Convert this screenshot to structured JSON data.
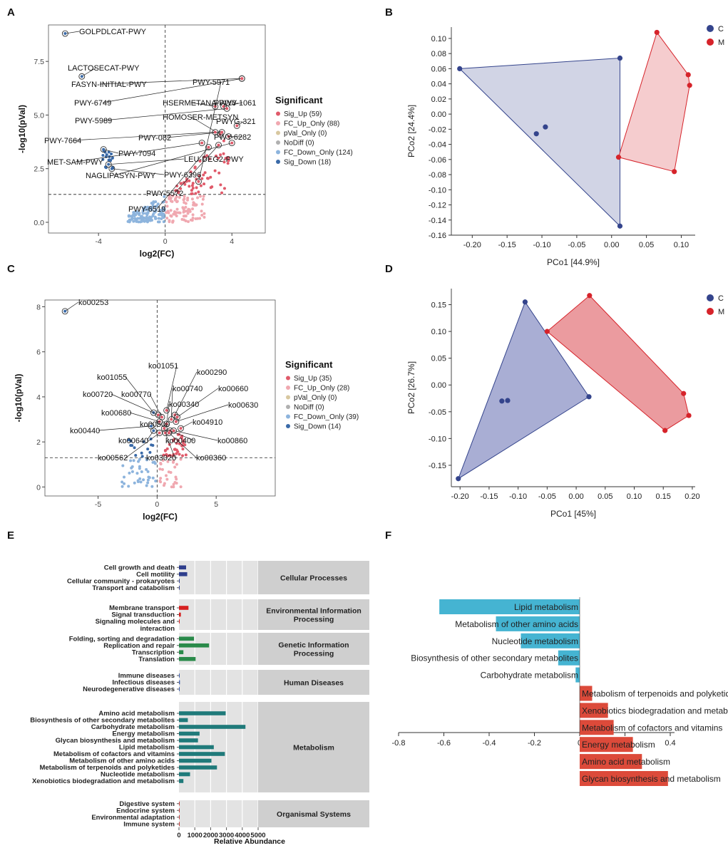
{
  "chart_data": [
    {
      "panel": "A",
      "type": "scatter",
      "subtype": "volcano",
      "xlabel": "log2(FC)",
      "ylabel": "-log10(pVal)",
      "xlim": [
        -7,
        6
      ],
      "ylim": [
        -0.5,
        9.2
      ],
      "xticks": [
        -4,
        0,
        4
      ],
      "yticks": [
        0.0,
        2.5,
        5.0,
        7.5
      ],
      "threshold_y": 1.3,
      "threshold_x": 0,
      "legend": {
        "title": "Significant",
        "entries": [
          {
            "label": "Sig_Up (59)",
            "color": "#e05a6a"
          },
          {
            "label": "FC_Up_Only (88)",
            "color": "#f0a8b0"
          },
          {
            "label": "pVal_Only (0)",
            "color": "#d8c8a0"
          },
          {
            "label": "NoDiff (0)",
            "color": "#b0b0b0"
          },
          {
            "label": "FC_Down_Only (124)",
            "color": "#8db4dd"
          },
          {
            "label": "Sig_Down (18)",
            "color": "#3a6aa8"
          }
        ]
      },
      "labeled_points": [
        {
          "label": "GOLPDLCAT-PWY",
          "x": -6.0,
          "y": 8.8
        },
        {
          "label": "LACTOSECAT-PWY",
          "x": -5.0,
          "y": 6.8
        },
        {
          "label": "FASYN-INITIAL-PWY",
          "x": 4.6,
          "y": 6.7
        },
        {
          "label": "PWY-6749",
          "x": 4.6,
          "y": 6.7
        },
        {
          "label": "HSERMETANA-PWY",
          "x": 3.0,
          "y": 5.4
        },
        {
          "label": "PWY0-1061",
          "x": 3.5,
          "y": 5.4
        },
        {
          "label": "PWY-5989",
          "x": 3.7,
          "y": 5.3
        },
        {
          "label": "HOMOSER-METSYN",
          "x": 3.3,
          "y": 4.1
        },
        {
          "label": "PWY-082",
          "x": 3.4,
          "y": 4.2
        },
        {
          "label": "PWYG-321",
          "x": 4.3,
          "y": 4.5
        },
        {
          "label": "PWY-7664",
          "x": 3.0,
          "y": 4.2
        },
        {
          "label": "PWY-6282",
          "x": 3.8,
          "y": 4.0
        },
        {
          "label": "PWY-7094",
          "x": -3.7,
          "y": 3.4
        },
        {
          "label": "MET-SAM-PWY",
          "x": 2.2,
          "y": 3.7
        },
        {
          "label": "LEU-DEG2-PWY",
          "x": -3.4,
          "y": 2.7
        },
        {
          "label": "NAGLIPASYN-PWY",
          "x": 4.0,
          "y": 3.7
        },
        {
          "label": "PWY-6396",
          "x": -3.2,
          "y": 2.5
        },
        {
          "label": "PWY-5572",
          "x": 3.2,
          "y": 3.6
        },
        {
          "label": "PWY-6519",
          "x": 2.6,
          "y": 3.5
        },
        {
          "label": "PWY-5971",
          "x": 2.0,
          "y": 1.9
        }
      ]
    },
    {
      "panel": "B",
      "type": "scatter",
      "subtype": "pcoa",
      "xlabel": "PCo1 [44.9%]",
      "ylabel": "PCo2 [24.4%]",
      "xlim": [
        -0.23,
        0.12
      ],
      "ylim": [
        -0.16,
        0.115
      ],
      "xticks": [
        -0.2,
        -0.15,
        -0.1,
        -0.05,
        0.0,
        0.05,
        0.1
      ],
      "yticks": [
        -0.16,
        -0.14,
        -0.12,
        -0.1,
        -0.08,
        -0.06,
        -0.04,
        -0.02,
        0.0,
        0.02,
        0.04,
        0.06,
        0.08,
        0.1
      ],
      "legend": [
        "C",
        "M"
      ],
      "series": [
        {
          "name": "C",
          "color": "#34448c",
          "x": [
            -0.218,
            0.012,
            0.012,
            -0.108,
            -0.095
          ],
          "y": [
            0.06,
            0.074,
            -0.148,
            -0.026,
            -0.017
          ],
          "hull": [
            0,
            1,
            2
          ]
        },
        {
          "name": "M",
          "color": "#d6232a",
          "x": [
            0.065,
            0.11,
            0.112,
            0.09,
            0.01
          ],
          "y": [
            0.108,
            0.052,
            0.038,
            -0.076,
            -0.057
          ],
          "hull": [
            0,
            1,
            2,
            3,
            4
          ]
        }
      ]
    },
    {
      "panel": "C",
      "type": "scatter",
      "subtype": "volcano",
      "xlabel": "log2(FC)",
      "ylabel": "-log10(pVal)",
      "xlim": [
        -9.5,
        10
      ],
      "ylim": [
        -0.4,
        8.3
      ],
      "xticks": [
        -5,
        0,
        5
      ],
      "yticks": [
        0,
        2,
        4,
        6,
        8
      ],
      "threshold_y": 1.3,
      "threshold_x": 0,
      "legend": {
        "title": "Significant",
        "entries": [
          {
            "label": "Sig_Up (35)",
            "color": "#e05a6a"
          },
          {
            "label": "FC_Up_Only (28)",
            "color": "#f0a8b0"
          },
          {
            "label": "pVal_Only (0)",
            "color": "#d8c8a0"
          },
          {
            "label": "NoDiff (0)",
            "color": "#b0b0b0"
          },
          {
            "label": "FC_Down_Only (39)",
            "color": "#8db4dd"
          },
          {
            "label": "Sig_Down (14)",
            "color": "#3a6aa8"
          }
        ]
      },
      "labeled_points": [
        {
          "label": "ko00253",
          "x": -7.8,
          "y": 7.8
        },
        {
          "label": "ko01051",
          "x": 0.8,
          "y": 3.4
        },
        {
          "label": "ko00290",
          "x": 1.5,
          "y": 3.2
        },
        {
          "label": "ko01055",
          "x": -0.3,
          "y": 3.3
        },
        {
          "label": "ko00740",
          "x": 1.2,
          "y": 3.0
        },
        {
          "label": "ko00660",
          "x": 1.7,
          "y": 3.1
        },
        {
          "label": "ko00720",
          "x": 0.1,
          "y": 3.2
        },
        {
          "label": "ko00770",
          "x": 0.4,
          "y": 3.1
        },
        {
          "label": "ko00340",
          "x": 0.8,
          "y": 2.8
        },
        {
          "label": "ko00630",
          "x": 1.6,
          "y": 2.9
        },
        {
          "label": "ko00680",
          "x": 0.2,
          "y": 2.9
        },
        {
          "label": "ko00500",
          "x": 0.6,
          "y": 2.6
        },
        {
          "label": "ko04910",
          "x": 2.0,
          "y": 2.6
        },
        {
          "label": "ko00440",
          "x": -0.5,
          "y": 2.7
        },
        {
          "label": "ko00640",
          "x": -0.3,
          "y": 2.5
        },
        {
          "label": "ko00400",
          "x": 1.1,
          "y": 2.5
        },
        {
          "label": "ko00860",
          "x": 1.4,
          "y": 2.5
        },
        {
          "label": "ko00562",
          "x": 0.2,
          "y": 2.4
        },
        {
          "label": "ko03020",
          "x": 0.7,
          "y": 2.4
        },
        {
          "label": "ko00360",
          "x": 1.0,
          "y": 2.4
        }
      ]
    },
    {
      "panel": "D",
      "type": "scatter",
      "subtype": "pcoa",
      "xlabel": "PCo1 [45%]",
      "ylabel": "PCo2 [26.7%]",
      "xlim": [
        -0.215,
        0.205
      ],
      "ylim": [
        -0.19,
        0.18
      ],
      "xticks": [
        -0.2,
        -0.15,
        -0.1,
        -0.05,
        0.0,
        0.05,
        0.1,
        0.15,
        0.2
      ],
      "yticks": [
        -0.15,
        -0.1,
        -0.05,
        0.0,
        0.05,
        0.1,
        0.15
      ],
      "legend": [
        "C",
        "M"
      ],
      "series": [
        {
          "name": "C",
          "color": "#34448c",
          "x": [
            -0.088,
            0.022,
            -0.203,
            -0.128,
            -0.118
          ],
          "y": [
            0.155,
            -0.022,
            -0.175,
            -0.03,
            -0.029
          ],
          "hull": [
            0,
            1,
            2
          ]
        },
        {
          "name": "M",
          "color": "#d6232a",
          "x": [
            0.023,
            0.185,
            0.194,
            0.153,
            -0.05
          ],
          "y": [
            0.167,
            -0.016,
            -0.057,
            -0.085,
            0.1
          ],
          "hull": [
            0,
            1,
            2,
            3,
            4
          ]
        }
      ]
    },
    {
      "panel": "E",
      "type": "bar",
      "orientation": "horizontal",
      "xlabel": "Relative Abundance",
      "xlim": [
        0,
        5000
      ],
      "xticks": [
        0,
        1000,
        2000,
        3000,
        4000,
        5000
      ],
      "groups": [
        {
          "name": "Cellular Processes",
          "color": "#2e3e8c",
          "categories": [
            "Cell growth and death",
            "Cell motility",
            "Cellular community - prokaryotes",
            "Transport and catabolism"
          ],
          "values": [
            450,
            520,
            40,
            30
          ]
        },
        {
          "name": "Environmental Information Processing",
          "color": "#d62020",
          "categories": [
            "Membrane transport",
            "Signal transduction",
            "Signaling molecules and interaction"
          ],
          "values": [
            600,
            120,
            10
          ]
        },
        {
          "name": "Genetic Information Processing",
          "color": "#2a8a4a",
          "categories": [
            "Folding, sorting and degradation",
            "Replication and repair",
            "Transcription",
            "Translation"
          ],
          "values": [
            950,
            1900,
            280,
            1050
          ]
        },
        {
          "name": "Human Diseases",
          "color": "#3a5aaa",
          "categories": [
            "Immune diseases",
            "Infectious diseases",
            "Neurodegenerative diseases"
          ],
          "values": [
            10,
            60,
            10
          ]
        },
        {
          "name": "Metabolism",
          "color": "#1f7a7a",
          "categories": [
            "Amino acid metabolism",
            "Biosynthesis of other secondary metabolites",
            "Carbohydrate metabolism",
            "Energy metabolism",
            "Glycan biosynthesis and metabolism",
            "Lipid metabolism",
            "Metabolism of cofactors and vitamins",
            "Metabolism of other amino acids",
            "Metabolism of terpenoids and polyketides",
            "Nucleotide metabolism",
            "Xenobiotics biodegradation and metabolism"
          ],
          "values": [
            2950,
            560,
            4200,
            1300,
            1200,
            2200,
            2900,
            2050,
            2400,
            700,
            280
          ]
        },
        {
          "name": "Organismal Systems",
          "color": "#c03a3a",
          "categories": [
            "Digestive system",
            "Endocrine system",
            "Environmental adaptation",
            "Immune system"
          ],
          "values": [
            5,
            10,
            40,
            5
          ]
        }
      ]
    },
    {
      "panel": "F",
      "type": "bar",
      "orientation": "horizontal",
      "xlim": [
        -0.8,
        0.45
      ],
      "xticks": [
        -0.8,
        -0.6,
        -0.4,
        -0.2,
        0,
        0.2,
        0.4
      ],
      "xtick_labels": [
        "-0.8",
        "-0.6",
        "-0.4",
        "-0.2",
        "0",
        "0.2",
        "0.4"
      ],
      "categories": [
        "Lipid metabolism",
        "Metabolism of other amino acids",
        "Nucleotide metabolism",
        "Biosynthesis of other secondary metabolites",
        "Carbohydrate metabolism",
        "Metabolism of terpenoids and polyketides",
        "Xenobiotics biodegradation and metabolism",
        "Metabolism of cofactors and vitamins",
        "Energy metabolism",
        "Amino acid metabolism",
        "Glycan biosynthesis and metabolism"
      ],
      "values": [
        -0.62,
        -0.37,
        -0.26,
        -0.095,
        -0.018,
        0.055,
        0.125,
        0.15,
        0.235,
        0.275,
        0.39
      ],
      "colors": {
        "negative": "#45b4d2",
        "positive": "#dc4a3a"
      }
    }
  ],
  "panel_labels": [
    "A",
    "B",
    "C",
    "D",
    "E",
    "F"
  ]
}
